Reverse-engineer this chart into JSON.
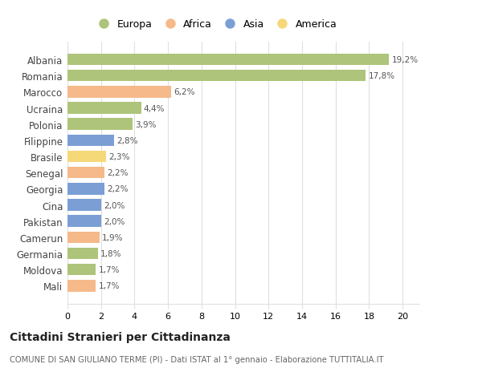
{
  "categories": [
    "Mali",
    "Moldova",
    "Germania",
    "Camerun",
    "Pakistan",
    "Cina",
    "Georgia",
    "Senegal",
    "Brasile",
    "Filippine",
    "Polonia",
    "Ucraina",
    "Marocco",
    "Romania",
    "Albania"
  ],
  "values": [
    1.7,
    1.7,
    1.8,
    1.9,
    2.0,
    2.0,
    2.2,
    2.2,
    2.3,
    2.8,
    3.9,
    4.4,
    6.2,
    17.8,
    19.2
  ],
  "labels": [
    "1,7%",
    "1,7%",
    "1,8%",
    "1,9%",
    "2,0%",
    "2,0%",
    "2,2%",
    "2,2%",
    "2,3%",
    "2,8%",
    "3,9%",
    "4,4%",
    "6,2%",
    "17,8%",
    "19,2%"
  ],
  "colors": [
    "#f5b98a",
    "#adc47a",
    "#adc47a",
    "#f5b98a",
    "#7b9fd4",
    "#7b9fd4",
    "#7b9fd4",
    "#f5b98a",
    "#f5d878",
    "#7b9fd4",
    "#adc47a",
    "#adc47a",
    "#f5b98a",
    "#adc47a",
    "#adc47a"
  ],
  "continent_colors": {
    "Europa": "#adc47a",
    "Africa": "#f5b98a",
    "Asia": "#7b9fd4",
    "America": "#f5d878"
  },
  "xlim": [
    0,
    21
  ],
  "xticks": [
    0,
    2,
    4,
    6,
    8,
    10,
    12,
    14,
    16,
    18,
    20
  ],
  "title": "Cittadini Stranieri per Cittadinanza",
  "subtitle": "COMUNE DI SAN GIULIANO TERME (PI) - Dati ISTAT al 1° gennaio - Elaborazione TUTTITALIA.IT",
  "bg_color": "#ffffff",
  "grid_color": "#e0e0e0",
  "bar_height": 0.72
}
